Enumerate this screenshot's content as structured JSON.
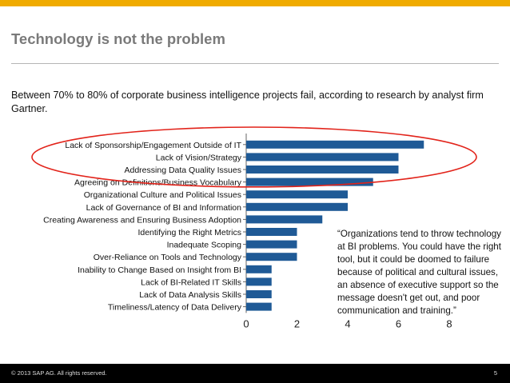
{
  "slide": {
    "title": "Technology is not the problem",
    "intro": "Between 70% to 80% of corporate business intelligence projects fail, according to research by analyst firm Gartner.",
    "quote": "“Organizations tend to throw technology at BI problems. You could have the right tool, but it could be doomed to failure because of political and cultural issues, an absence of executive support so the message doesn't get out, and poor communication and training.”"
  },
  "footer": {
    "copyright": "© 2013 SAP AG. All rights reserved.",
    "page_number": "5"
  },
  "colors": {
    "accent": "#f0ab00",
    "bar": "#1f5a96",
    "highlight": "#e2231a",
    "title": "#7a7a7a"
  },
  "chart_data": {
    "type": "bar",
    "orientation": "horizontal",
    "categories": [
      "Lack of Sponsorship/Engagement Outside of IT",
      "Lack of Vision/Strategy",
      "Addressing Data Quality Issues",
      "Agreeing on Definitions/Business Vocabulary",
      "Organizational Culture and Political Issues",
      "Lack of Governance of BI and Information",
      "Creating Awareness and Ensuring Business Adoption",
      "Identifying the Right Metrics",
      "Inadequate Scoping",
      "Over-Reliance on Tools and Technology",
      "Inability to Change Based on Insight from BI",
      "Lack of BI-Related IT Skills",
      "Lack of Data Analysis Skills",
      "Timeliness/Latency of Data Delivery"
    ],
    "values": [
      7,
      6,
      6,
      5,
      4,
      4,
      3,
      2,
      2,
      2,
      1,
      1,
      1,
      1
    ],
    "xlim": [
      0,
      8
    ],
    "xticks": [
      "0",
      "2",
      "4",
      "6",
      "8"
    ],
    "highlighted_categories": 3
  }
}
